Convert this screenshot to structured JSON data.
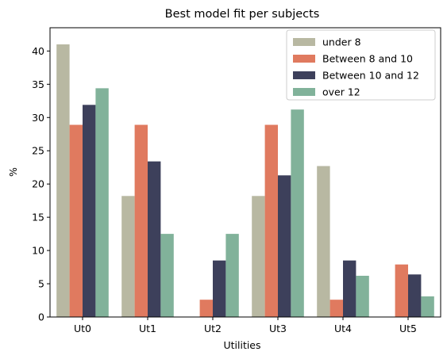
{
  "chart_data": {
    "type": "bar",
    "title": "Best model fit per subjects",
    "xlabel": "Utilities",
    "ylabel": "%",
    "categories": [
      "Ut0",
      "Ut1",
      "Ut2",
      "Ut3",
      "Ut4",
      "Ut5"
    ],
    "ylim": [
      0,
      43.5
    ],
    "yticks": [
      0,
      5,
      10,
      15,
      20,
      25,
      30,
      35,
      40
    ],
    "grid": false,
    "legend_position": "top-right",
    "series": [
      {
        "name": "under 8",
        "color": "#b8b8a2",
        "values": [
          41.0,
          18.2,
          0,
          18.2,
          22.7,
          0
        ]
      },
      {
        "name": "Between 8 and 10",
        "color": "#e07a5f",
        "values": [
          28.9,
          28.9,
          2.6,
          28.9,
          2.6,
          7.9
        ]
      },
      {
        "name": "Between 10 and 12",
        "color": "#3d405b",
        "values": [
          31.9,
          23.4,
          8.5,
          21.3,
          8.5,
          6.4
        ]
      },
      {
        "name": "over 12",
        "color": "#81b29a",
        "values": [
          34.4,
          12.5,
          12.5,
          31.2,
          6.2,
          3.1
        ]
      }
    ]
  }
}
